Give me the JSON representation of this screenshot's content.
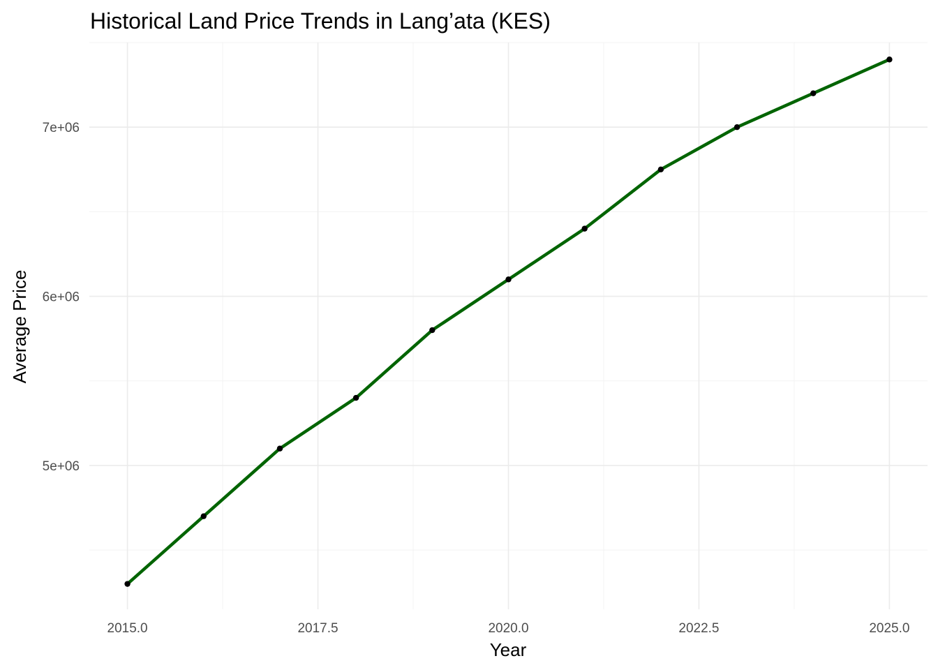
{
  "chart_data": {
    "type": "line",
    "title": "Historical Land Price Trends in Lang’ata (KES)",
    "xlabel": "Year",
    "ylabel": "Average Price",
    "x": [
      2015,
      2016,
      2017,
      2018,
      2019,
      2020,
      2021,
      2022,
      2023,
      2024,
      2025
    ],
    "series": [
      {
        "values": [
          4300000,
          4700000,
          5100000,
          5400000,
          5800000,
          6100000,
          6400000,
          6750000,
          7000000,
          7200000,
          7400000
        ]
      }
    ],
    "xlim": [
      2014.5,
      2025.5
    ],
    "ylim": [
      4150000,
      7500000
    ],
    "x_ticks": [
      2015,
      2017.5,
      2020,
      2022.5,
      2025
    ],
    "x_tick_labels": [
      "2015.0",
      "2017.5",
      "2020.0",
      "2022.5",
      "2025.0"
    ],
    "x_minor_ticks": [
      2016.25,
      2018.75,
      2021.25,
      2023.75
    ],
    "y_ticks": [
      5000000,
      6000000,
      7000000
    ],
    "y_tick_labels": [
      "5e+06",
      "6e+06",
      "7e+06"
    ],
    "y_minor_ticks": [
      4500000,
      5500000,
      6500000,
      7500000
    ],
    "grid": true,
    "legend": "none",
    "line_color": "#006400",
    "point_color": "#000000"
  }
}
